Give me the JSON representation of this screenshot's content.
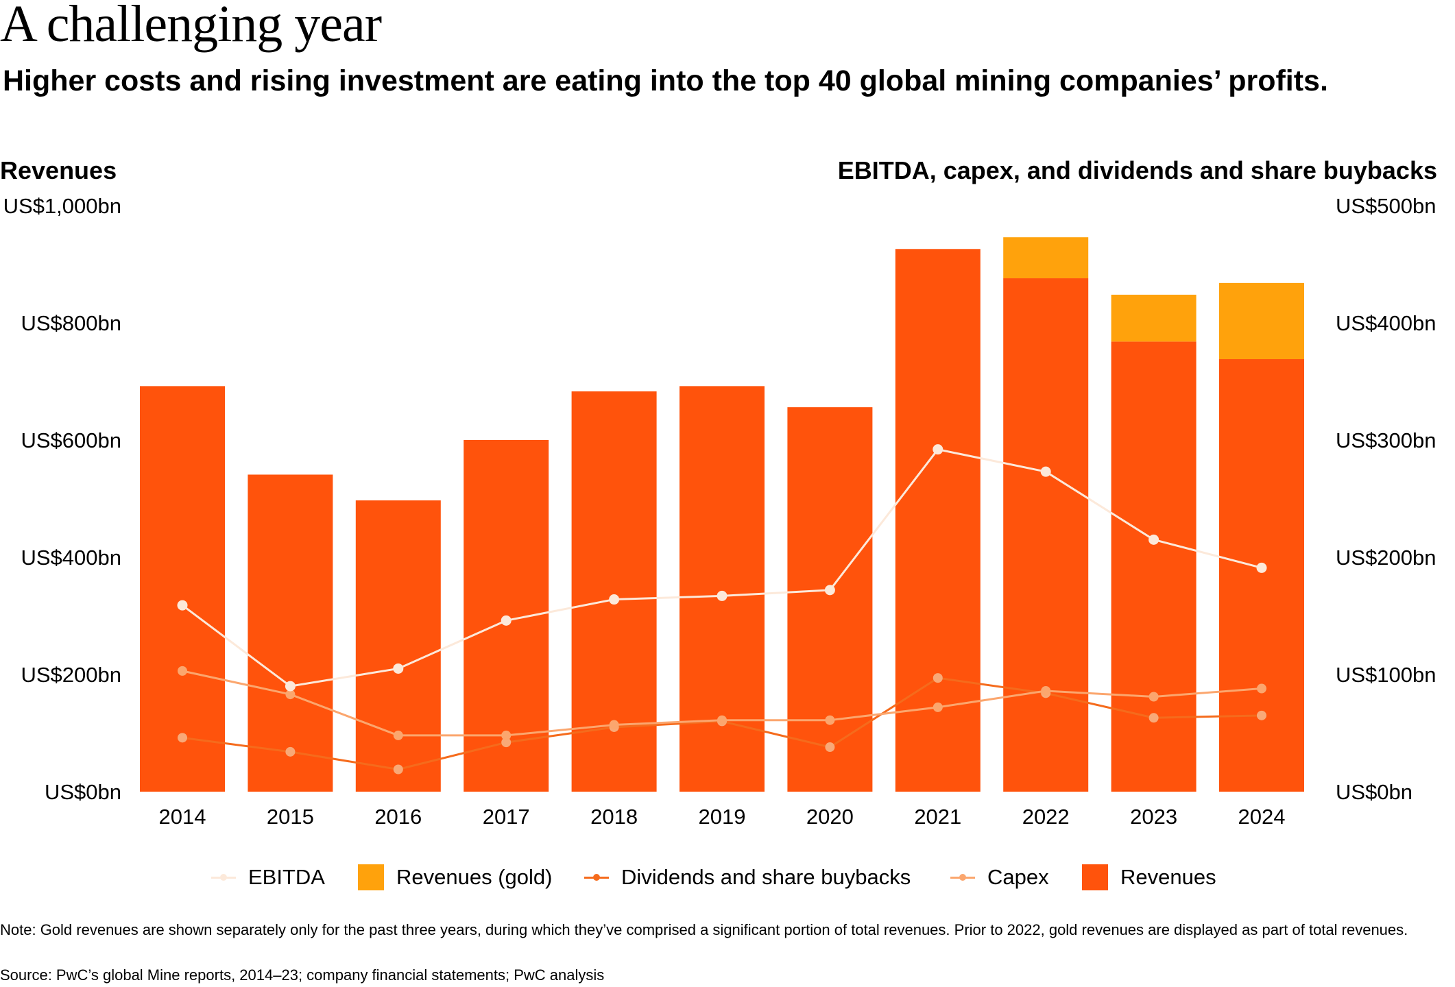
{
  "title": "A challenging year",
  "subtitle": "Higher costs and rising investment are eating into the top 40 global mining companies’ profits.",
  "left_panel_title": "Revenues",
  "right_panel_title": "EBITDA, capex, and dividends and share buybacks",
  "legend": [
    {
      "label": "EBITDA",
      "kind": "line",
      "color": "#FCE9DA"
    },
    {
      "label": "Revenues (gold)",
      "kind": "box",
      "color": "#FFA20C"
    },
    {
      "label": "Dividends and share buybacks",
      "kind": "line",
      "color": "#F56B1C"
    },
    {
      "label": "Capex",
      "kind": "line",
      "color": "#FBA66E"
    },
    {
      "label": "Revenues",
      "kind": "box",
      "color": "#FF530C"
    }
  ],
  "note": "Note: Gold revenues are shown separately only for the past three years, during which they’ve comprised a significant portion of total revenues. Prior to 2022, gold revenues are displayed as part of total revenues.",
  "source": "Source: PwC’s global Mine reports, 2014–23; company financial statements; PwC analysis",
  "chart_data": {
    "type": "bar",
    "categories": [
      "2014",
      "2015",
      "2016",
      "2017",
      "2018",
      "2019",
      "2020",
      "2021",
      "2022",
      "2023",
      "2024"
    ],
    "left_axis": {
      "ylim": [
        0,
        1000
      ],
      "tick_values": [
        0,
        200,
        400,
        600,
        800,
        1000
      ],
      "tick_labels": [
        "US$0bn",
        "US$200bn",
        "US$400bn",
        "US$600bn",
        "US$800bn",
        "US$1,000bn"
      ]
    },
    "right_axis": {
      "ylim": [
        0,
        500
      ],
      "tick_values": [
        0,
        100,
        200,
        300,
        400,
        500
      ],
      "tick_labels": [
        "US$0bn",
        "US$100bn",
        "US$200bn",
        "US$300bn",
        "US$400bn",
        "US$500bn"
      ]
    },
    "bars": [
      {
        "name": "Revenues",
        "axis": "left",
        "color": "#FF530C",
        "values": [
          692,
          541,
          497,
          600,
          683,
          692,
          656,
          926,
          876,
          768,
          738
        ]
      },
      {
        "name": "Revenues (gold)",
        "axis": "left",
        "color": "#FFA20C",
        "values": [
          0,
          0,
          0,
          0,
          0,
          0,
          0,
          0,
          70,
          80,
          130
        ]
      }
    ],
    "lines": [
      {
        "name": "EBITDA",
        "axis": "right",
        "color": "#FCE9DA",
        "marker_color": "#FCE9DA",
        "values": [
          159,
          90,
          105,
          146,
          164,
          167,
          172,
          292,
          273,
          215,
          191
        ]
      },
      {
        "name": "Capex",
        "axis": "right",
        "color": "#FBA66E",
        "marker_color": "#FBA66E",
        "values": [
          103,
          83,
          48,
          48,
          57,
          61,
          61,
          72,
          86,
          81,
          88
        ]
      },
      {
        "name": "Dividends and share buybacks",
        "axis": "right",
        "color": "#F56B1C",
        "marker_color": "#F8A978",
        "values": [
          46,
          34,
          19,
          42,
          55,
          60,
          38,
          97,
          84,
          63,
          65
        ]
      }
    ],
    "grid": false
  }
}
